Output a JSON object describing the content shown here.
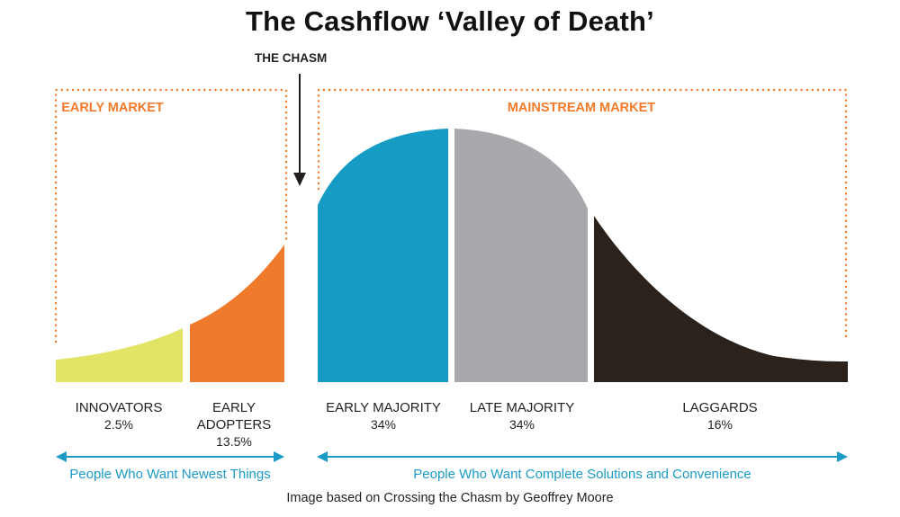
{
  "title": "The Cashflow ‘Valley of Death’",
  "chasm_label": "THE CHASM",
  "markets": {
    "early": "EARLY MARKET",
    "mainstream": "MAINSTREAM MARKET"
  },
  "segments": [
    {
      "name": "INNOVATORS",
      "percent": "2.5%",
      "value": 2.5,
      "color": "#e2e466"
    },
    {
      "name_line1": "EARLY",
      "name_line2": "ADOPTERS",
      "percent": "13.5%",
      "value": 13.5,
      "color": "#ef7a2b"
    },
    {
      "name": "EARLY MAJORITY",
      "percent": "34%",
      "value": 34,
      "color": "#159bc4"
    },
    {
      "name": "LATE MAJORITY",
      "percent": "34%",
      "value": 34,
      "color": "#a7a9ac"
    },
    {
      "name": "LAGGARDS",
      "percent": "16%",
      "value": 16,
      "color": "#2b221c"
    }
  ],
  "groups": {
    "left_caption": "People Who Want Newest Things",
    "right_caption": "People Who Want Complete Solutions and Convenience"
  },
  "colors": {
    "accent_orange": "#f47a2a",
    "accent_blue": "#1b9bc6",
    "text_dark": "#231f20"
  },
  "credit": "Image based on Crossing the Chasm by Geoffrey Moore"
}
